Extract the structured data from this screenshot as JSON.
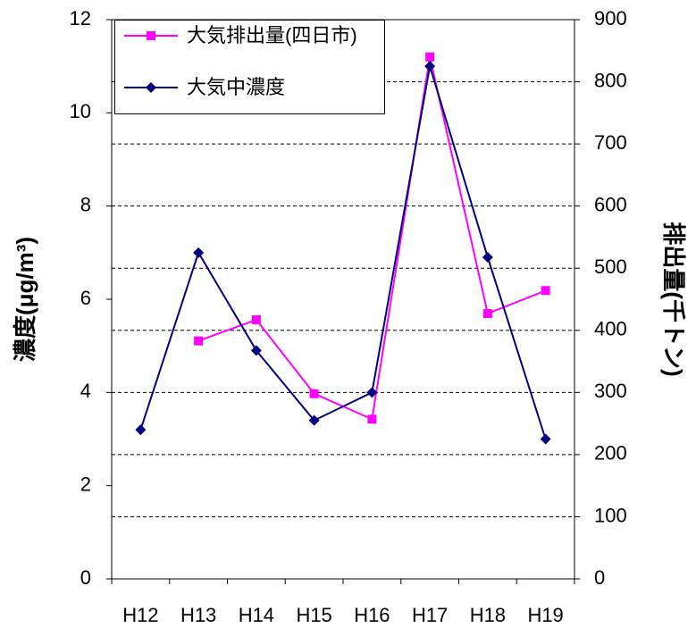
{
  "chart_data": {
    "type": "line",
    "categories": [
      "H12",
      "H13",
      "H14",
      "H15",
      "H16",
      "H17",
      "H18",
      "H19"
    ],
    "series": [
      {
        "name": "大気排出量(四日市)",
        "color": "#ff00ff",
        "marker": "square",
        "axis": "y2",
        "values": [
          null,
          383,
          417,
          298,
          257,
          840,
          427,
          464
        ]
      },
      {
        "name": "大気中濃度",
        "color": "#000080",
        "marker": "diamond",
        "values": [
          3.2,
          7.0,
          4.9,
          3.4,
          4.0,
          11.0,
          6.9,
          3.0
        ]
      }
    ],
    "ylabel": "濃度(μg/m³)",
    "ylabel_color": "#333399",
    "y2label": "排出量(千トン)",
    "y2label_color": "#ff00ff",
    "ylim": [
      0,
      12
    ],
    "yticks": [
      0,
      2,
      4,
      6,
      8,
      10,
      12
    ],
    "y2lim": [
      0,
      900
    ],
    "y2ticks": [
      0,
      100,
      200,
      300,
      400,
      500,
      600,
      700,
      800,
      900
    ],
    "grid": "y2",
    "legend": "upper left"
  }
}
